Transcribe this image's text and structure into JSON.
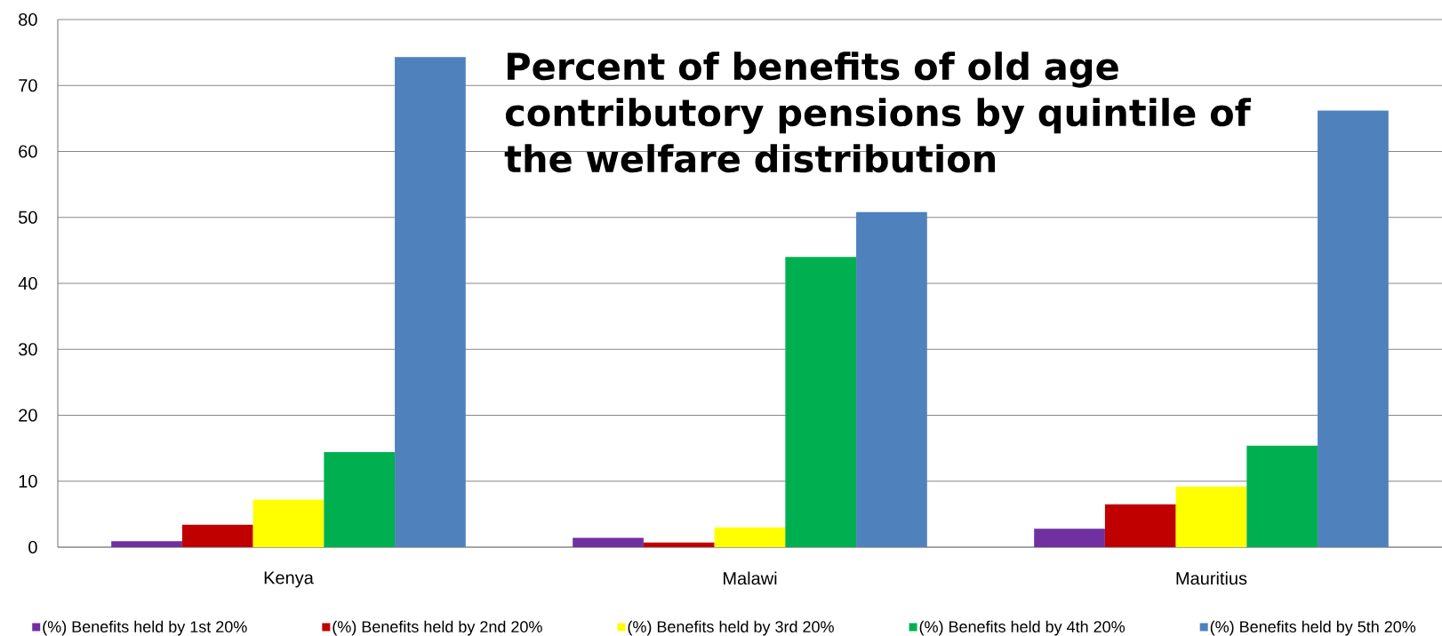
{
  "chart_data": {
    "type": "bar",
    "title": "Percent of benefits of old age contributory pensions by quintile of the welfare distribution",
    "categories": [
      "Kenya",
      "Malawi",
      "Mauritius"
    ],
    "series": [
      {
        "name": "(%) Benefits held by 1st 20%",
        "color": "#7030a0",
        "values": [
          0.9,
          1.4,
          2.8
        ]
      },
      {
        "name": "(%) Benefits held by 2nd 20%",
        "color": "#c00000",
        "values": [
          3.4,
          0.7,
          6.5
        ]
      },
      {
        "name": "(%) Benefits held by 3rd 20%",
        "color": "#ffff00",
        "values": [
          7.2,
          3.0,
          9.2
        ]
      },
      {
        "name": "(%) Benefits held by 4th 20%",
        "color": "#00b050",
        "values": [
          14.4,
          44.0,
          15.4
        ]
      },
      {
        "name": "(%) Benefits held by 5th 20%",
        "color": "#4f81bd",
        "values": [
          74.3,
          50.8,
          66.2
        ]
      }
    ],
    "ylim": [
      0,
      80
    ],
    "yticks": [
      0,
      10,
      20,
      30,
      40,
      50,
      60,
      70,
      80
    ],
    "grid": "y",
    "legend": "bottom"
  }
}
